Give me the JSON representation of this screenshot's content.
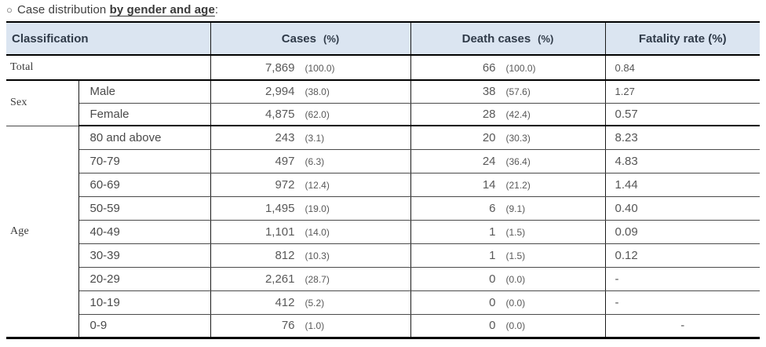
{
  "title": {
    "bullet": "○",
    "prefix": "Case distribution ",
    "emphasis": "by gender and age",
    "suffix": ":"
  },
  "colors": {
    "header_bg": "#dbe5f1",
    "header_text": "#303b49",
    "border_strong": "#000000",
    "border_thin": "#4a4a4a",
    "number_text": "#595959"
  },
  "table": {
    "headers": {
      "classification": "Classification",
      "cases": "Cases",
      "cases_pct": "(%)",
      "deaths": "Death cases",
      "deaths_pct": "(%)",
      "fatality": "Fatality rate (%)"
    },
    "groups": {
      "sex": "Sex",
      "age": "Age"
    },
    "rows": [
      {
        "label": "Total",
        "cases": "7,869",
        "cases_pct": "(100.0)",
        "deaths": "66",
        "deaths_pct": "(100.0)",
        "fatality": "0.84"
      },
      {
        "label": "Male",
        "cases": "2,994",
        "cases_pct": "(38.0)",
        "deaths": "38",
        "deaths_pct": "(57.6)",
        "fatality": "1.27"
      },
      {
        "label": "Female",
        "cases": "4,875",
        "cases_pct": "(62.0)",
        "deaths": "28",
        "deaths_pct": "(42.4)",
        "fatality": "0.57"
      },
      {
        "label": "80 and above",
        "cases": "243",
        "cases_pct": "(3.1)",
        "deaths": "20",
        "deaths_pct": "(30.3)",
        "fatality": "8.23"
      },
      {
        "label": "70-79",
        "cases": "497",
        "cases_pct": "(6.3)",
        "deaths": "24",
        "deaths_pct": "(36.4)",
        "fatality": "4.83"
      },
      {
        "label": "60-69",
        "cases": "972",
        "cases_pct": "(12.4)",
        "deaths": "14",
        "deaths_pct": "(21.2)",
        "fatality": "1.44"
      },
      {
        "label": "50-59",
        "cases": "1,495",
        "cases_pct": "(19.0)",
        "deaths": "6",
        "deaths_pct": "(9.1)",
        "fatality": "0.40"
      },
      {
        "label": "40-49",
        "cases": "1,101",
        "cases_pct": "(14.0)",
        "deaths": "1",
        "deaths_pct": "(1.5)",
        "fatality": "0.09"
      },
      {
        "label": "30-39",
        "cases": "812",
        "cases_pct": "(10.3)",
        "deaths": "1",
        "deaths_pct": "(1.5)",
        "fatality": "0.12"
      },
      {
        "label": "20-29",
        "cases": "2,261",
        "cases_pct": "(28.7)",
        "deaths": "0",
        "deaths_pct": "(0.0)",
        "fatality": "-"
      },
      {
        "label": "10-19",
        "cases": "412",
        "cases_pct": "(5.2)",
        "deaths": "0",
        "deaths_pct": "(0.0)",
        "fatality": "-"
      },
      {
        "label": "0-9",
        "cases": "76",
        "cases_pct": "(1.0)",
        "deaths": "0",
        "deaths_pct": "(0.0)",
        "fatality": "-"
      }
    ]
  }
}
